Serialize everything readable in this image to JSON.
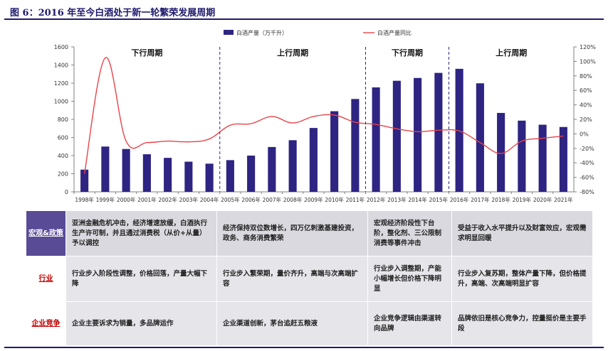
{
  "figure_title": "图 6：2016 年至今白酒处于新一轮繁荣发展周期",
  "chart_data": {
    "type": "bar+line",
    "categories": [
      "1998年",
      "1999年",
      "2000年",
      "2001年",
      "2002年",
      "2003年",
      "2004年",
      "2005年",
      "2006年",
      "2007年",
      "2008年",
      "2009年",
      "2010年",
      "2011年",
      "2012年",
      "2013年",
      "2014年",
      "2015年",
      "2016年",
      "2017年",
      "2018年",
      "2019年",
      "2020年",
      "2021年"
    ],
    "series": [
      {
        "name": "白酒产量（万千升）",
        "type": "bar",
        "axis": "left",
        "values": [
          245,
          500,
          473,
          415,
          375,
          333,
          311,
          350,
          400,
          495,
          570,
          705,
          890,
          1025,
          1153,
          1226,
          1257,
          1313,
          1358,
          1198,
          871,
          786,
          741,
          716
        ]
      },
      {
        "name": "白酒产量同比",
        "type": "line",
        "axis": "right",
        "values": [
          -55,
          105,
          -10,
          -12,
          -10,
          -11,
          -7,
          12,
          14,
          24,
          15,
          24,
          26,
          16,
          13,
          7,
          3,
          5,
          4,
          -12,
          -27,
          -10,
          -6,
          -3
        ]
      }
    ],
    "ylim_left": [
      0,
      1600
    ],
    "yticks_left": [
      0,
      200,
      400,
      600,
      800,
      1000,
      1200,
      1400,
      1600
    ],
    "ylim_right": [
      -80,
      120
    ],
    "yticks_right": [
      "-80%",
      "-60%",
      "-40%",
      "-20%",
      "0%",
      "20%",
      "40%",
      "60%",
      "80%",
      "100%",
      "120%"
    ],
    "cycles": [
      {
        "label": "下行周期",
        "start": 0,
        "end": 6
      },
      {
        "label": "上行周期",
        "start": 7,
        "end": 13
      },
      {
        "label": "下行周期",
        "start": 14,
        "end": 17
      },
      {
        "label": "上行周期",
        "start": 18,
        "end": 23
      }
    ],
    "colors": {
      "bar": "#2e2482",
      "line": "#e8444a",
      "divider": "#2e2482",
      "axis": "#808080"
    }
  },
  "table": {
    "rows": [
      {
        "header": "宏观&政策",
        "cells": [
          "亚洲金融危机冲击，经济增速放缓，白酒执行生产许可制，并且通过消费税（从价+从量）予以调控",
          "经济保持双位数增长，四万亿刺激基建投资，政务、商务消费繁荣",
          "宏观经济阶段性下台阶，整化剂、三公限制消费等事件冲击",
          "受益于收入水平提升以及财富效应，宏观需求明显回暖"
        ]
      },
      {
        "header": "行业",
        "cells": [
          "行业步入阶段性调整，价格回落，产量大幅下降",
          "行业步入繁荣期，量价齐升，高端与次高端扩容",
          "行业步入调整期，产能小幅增长但价格下降明显",
          "行业步入复苏期，整体产量下降，但价格提升，高端、次高端明显扩容"
        ]
      },
      {
        "header": "企业竞争",
        "cells": [
          "企业主要诉求为销量，多品牌运作",
          "企业渠道创新，茅台追赶五粮液",
          "企业竞争逻辑由渠道转向品牌",
          "品牌依旧是核心竞争力，控量挺价是主要手段"
        ]
      }
    ]
  }
}
